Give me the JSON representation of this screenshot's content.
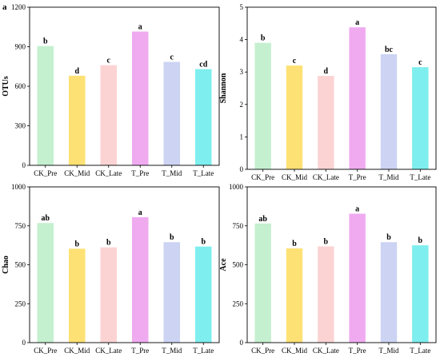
{
  "panel_label": "a",
  "colors": [
    "#c4f0cf",
    "#fde174",
    "#fcd3d3",
    "#f0abf0",
    "#ccd3f3",
    "#7eeeee"
  ],
  "chart_data": [
    {
      "type": "bar",
      "categories": [
        "CK_Pre",
        "CK_Mid",
        "CK_Late",
        "T_Pre",
        "T_Mid",
        "T_Late"
      ],
      "values": [
        905,
        680,
        760,
        1015,
        785,
        730
      ],
      "labels": [
        "b",
        "d",
        "c",
        "a",
        "c",
        "cd"
      ],
      "ylabel": "OTUs",
      "ylim": [
        0,
        1200
      ],
      "yticks": [
        0,
        300,
        600,
        900,
        1200
      ],
      "grid": false
    },
    {
      "type": "bar",
      "categories": [
        "CK_Pre",
        "CK_Mid",
        "CK_Late",
        "T_Pre",
        "T_Mid",
        "T_Late"
      ],
      "values": [
        3.9,
        3.2,
        2.88,
        4.38,
        3.55,
        3.15
      ],
      "labels": [
        "b",
        "c",
        "d",
        "a",
        "bc",
        "c"
      ],
      "ylabel": "Shannon",
      "ylim": [
        0,
        5
      ],
      "yticks": [
        0,
        1,
        2,
        3,
        4,
        5
      ],
      "grid": false
    },
    {
      "type": "bar",
      "categories": [
        "CK_Pre",
        "CK_Mid",
        "CK_Late",
        "T_Pre",
        "T_Mid",
        "T_Late"
      ],
      "values": [
        768,
        603,
        612,
        805,
        645,
        617
      ],
      "labels": [
        "ab",
        "b",
        "b",
        "a",
        "b",
        "b"
      ],
      "ylabel": "Chao",
      "ylim": [
        0,
        1000
      ],
      "yticks": [
        0,
        250,
        500,
        750,
        1000
      ],
      "grid": false
    },
    {
      "type": "bar",
      "categories": [
        "CK_Pre",
        "CK_Mid",
        "CK_Late",
        "T_Pre",
        "T_Mid",
        "T_Late"
      ],
      "values": [
        765,
        605,
        618,
        828,
        645,
        625
      ],
      "labels": [
        "ab",
        "b",
        "b",
        "a",
        "b",
        "b"
      ],
      "ylabel": "Ace",
      "ylim": [
        0,
        1000
      ],
      "yticks": [
        0,
        250,
        500,
        750,
        1000
      ],
      "grid": false
    }
  ]
}
